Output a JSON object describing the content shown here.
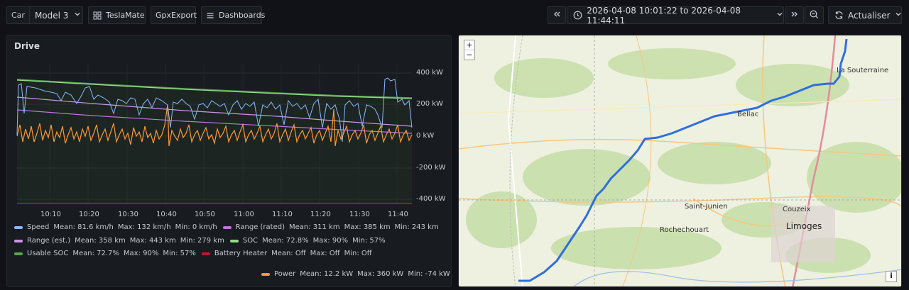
{
  "toolbar": {
    "car_label": "Car",
    "car_value": "Model 3",
    "teslamate": "TeslaMate",
    "gpxexport": "GpxExport",
    "dashboards": "Dashboards",
    "time_range": "2026-04-08 10:01:22 to 2026-04-08 11:44:11",
    "refresh": "Actualiser"
  },
  "panel": {
    "title": "Drive",
    "y_ticks": [
      "400 kW",
      "200 kW",
      "0 kW",
      "-200 kW",
      "-400 kW"
    ],
    "x_ticks": [
      "10:10",
      "10:20",
      "10:30",
      "10:40",
      "10:50",
      "11:00",
      "11:10",
      "11:20",
      "11:30",
      "11:40"
    ]
  },
  "legend": {
    "speed": {
      "name": "Speed",
      "mean": "Mean: 81.6 km/h",
      "max": "Max: 132 km/h",
      "min": "Min: 0 km/h",
      "color": "#8ab8ff"
    },
    "range_rated": {
      "name": "Range (rated)",
      "mean": "Mean: 311 km",
      "max": "Max: 385 km",
      "min": "Min: 243 km",
      "color": "#b877d9"
    },
    "range_est": {
      "name": "Range (est.)",
      "mean": "Mean: 358 km",
      "max": "Max: 443 km",
      "min": "Min: 279 km",
      "color": "#ca95e5"
    },
    "soc": {
      "name": "SOC",
      "mean": "Mean: 72.8%",
      "max": "Max: 90%",
      "min": "Min: 57%",
      "color": "#96d98d"
    },
    "usable_soc": {
      "name": "Usable SOC",
      "mean": "Mean: 72.7%",
      "max": "Max: 90%",
      "min": "Min: 57%",
      "color": "#56a64b"
    },
    "battery_heater": {
      "name": "Battery Heater",
      "mean": "Mean: Off",
      "max": "Max: Off",
      "min": "Min: Off",
      "color": "#c4162a"
    },
    "power": {
      "name": "Power",
      "mean": "Mean: 12.2 kW",
      "max": "Max: 360 kW",
      "min": "Min: -74 kW",
      "color": "#ff9830"
    }
  },
  "map": {
    "zoom_in": "+",
    "zoom_out": "−",
    "info": "i",
    "places": {
      "la_souterraine": "La Souterraine",
      "bellac": "Bellac",
      "saint_junien": "Saint-Junien",
      "rochechouart": "Rochechouart",
      "couzeix": "Couzeix",
      "limoges": "Limoges"
    }
  }
}
